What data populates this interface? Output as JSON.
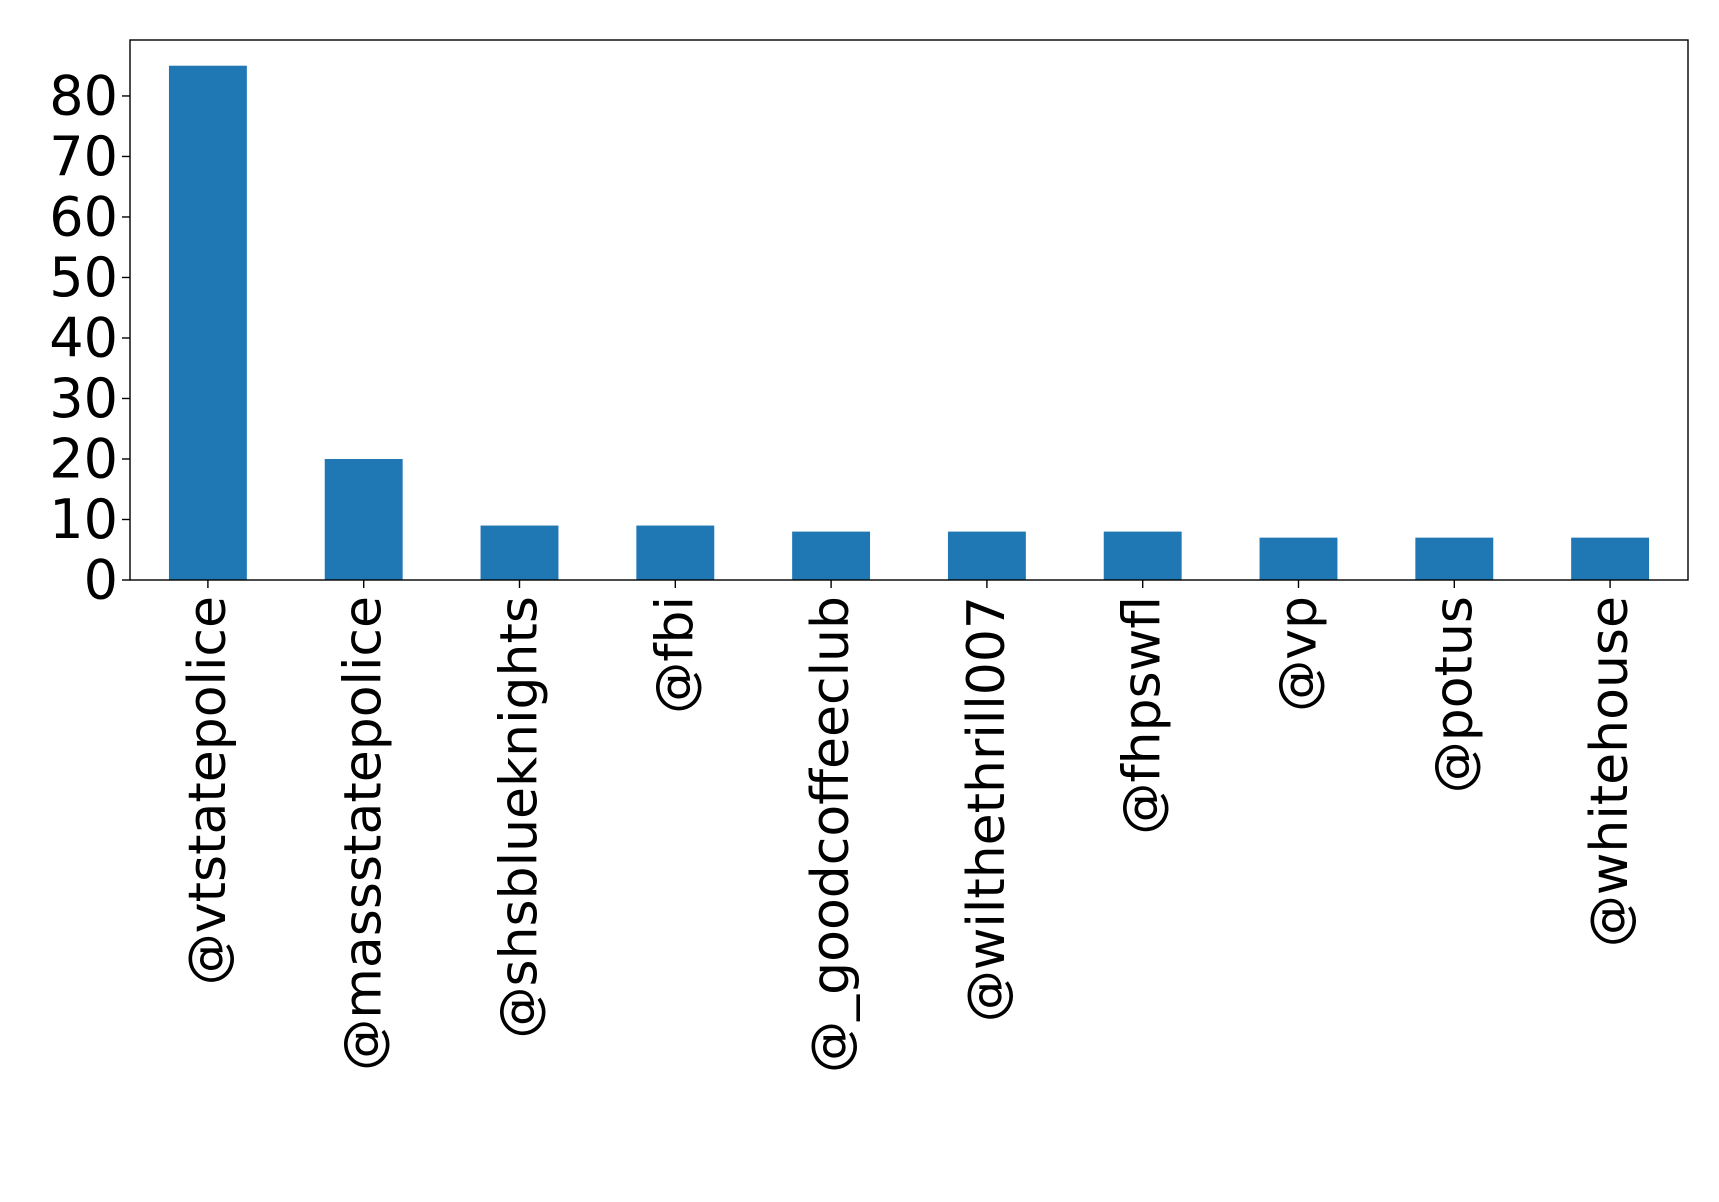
{
  "chart_data": {
    "type": "bar",
    "title": "",
    "xlabel": "",
    "ylabel": "",
    "categories": [
      "@vtstatepolice",
      "@massstatepolice",
      "@shsblueknights",
      "@fbi",
      "@_goodcoffeeclub",
      "@wilthethrill007",
      "@fhpswfl",
      "@vp",
      "@potus",
      "@whitehouse"
    ],
    "values": [
      85,
      20,
      9,
      9,
      8,
      8,
      8,
      7,
      7,
      7
    ],
    "ylim": [
      0,
      89.25
    ],
    "yticks": [
      0,
      10,
      20,
      30,
      40,
      50,
      60,
      70,
      80
    ],
    "grid": false,
    "legend": "none",
    "bar_color": "#1f77b4"
  }
}
